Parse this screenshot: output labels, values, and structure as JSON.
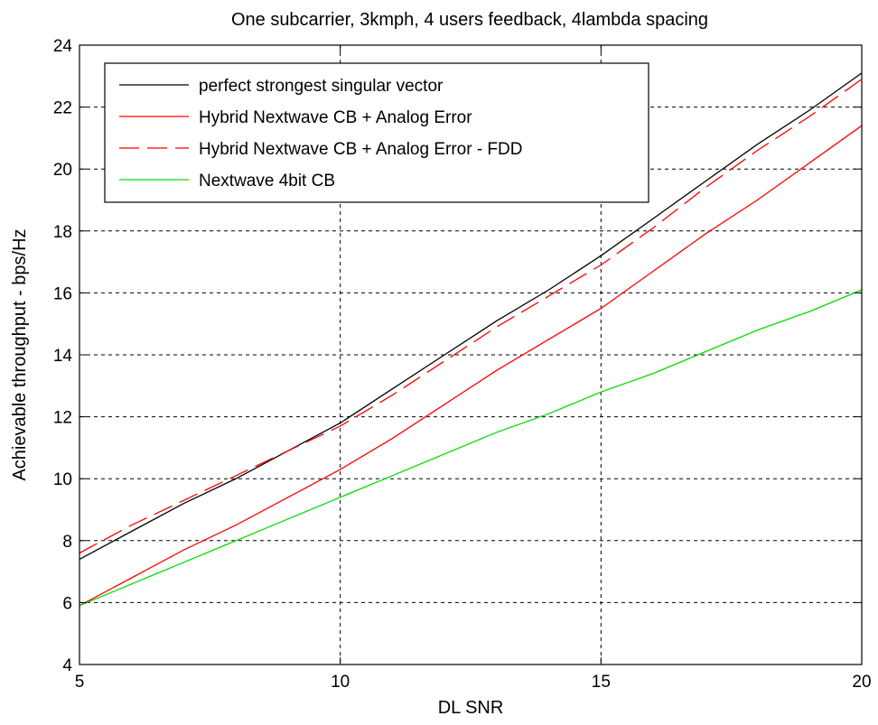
{
  "chart_data": {
    "type": "line",
    "title": "One subcarrier, 3kmph, 4 users feedback, 4lambda spacing",
    "xlabel": "DL SNR",
    "ylabel": "Achievable throughput - bps/Hz",
    "xlim": [
      5,
      20
    ],
    "ylim": [
      4,
      24
    ],
    "xticks": [
      5,
      10,
      15,
      20
    ],
    "yticks": [
      4,
      6,
      8,
      10,
      12,
      14,
      16,
      18,
      20,
      22,
      24
    ],
    "grid": true,
    "legend_position": "top-left",
    "series": [
      {
        "name": "perfect strongest singular vector",
        "color": "#000000",
        "dash": "solid",
        "x": [
          5,
          6,
          7,
          8,
          9,
          10,
          11,
          12,
          13,
          14,
          15,
          16,
          17,
          18,
          19,
          20
        ],
        "y": [
          7.4,
          8.3,
          9.2,
          10.0,
          10.9,
          11.8,
          12.9,
          14.0,
          15.1,
          16.1,
          17.2,
          18.4,
          19.6,
          20.8,
          21.9,
          23.1
        ]
      },
      {
        "name": "Hybrid Nextwave CB + Analog Error",
        "color": "#ff0000",
        "dash": "solid",
        "x": [
          5,
          6,
          7,
          8,
          9,
          10,
          11,
          12,
          13,
          14,
          15,
          16,
          17,
          18,
          19,
          20
        ],
        "y": [
          5.9,
          6.8,
          7.7,
          8.5,
          9.4,
          10.3,
          11.3,
          12.4,
          13.5,
          14.5,
          15.5,
          16.7,
          17.9,
          19.0,
          20.2,
          21.4
        ]
      },
      {
        "name": "Hybrid Nextwave CB + Analog Error - FDD",
        "color": "#ff0000",
        "dash": "dashed",
        "x": [
          5,
          6,
          7,
          8,
          9,
          10,
          11,
          12,
          13,
          14,
          15,
          16,
          17,
          18,
          19,
          20
        ],
        "y": [
          7.6,
          8.5,
          9.3,
          10.1,
          10.9,
          11.7,
          12.7,
          13.8,
          14.9,
          15.9,
          16.9,
          18.1,
          19.4,
          20.6,
          21.7,
          22.9
        ]
      },
      {
        "name": "Nextwave 4bit CB",
        "color": "#00dd00",
        "dash": "solid",
        "x": [
          5,
          6,
          7,
          8,
          9,
          10,
          11,
          12,
          13,
          14,
          15,
          16,
          17,
          18,
          19,
          20
        ],
        "y": [
          5.9,
          6.6,
          7.3,
          8.0,
          8.7,
          9.4,
          10.1,
          10.8,
          11.5,
          12.1,
          12.8,
          13.4,
          14.1,
          14.8,
          15.4,
          16.1
        ]
      }
    ]
  }
}
